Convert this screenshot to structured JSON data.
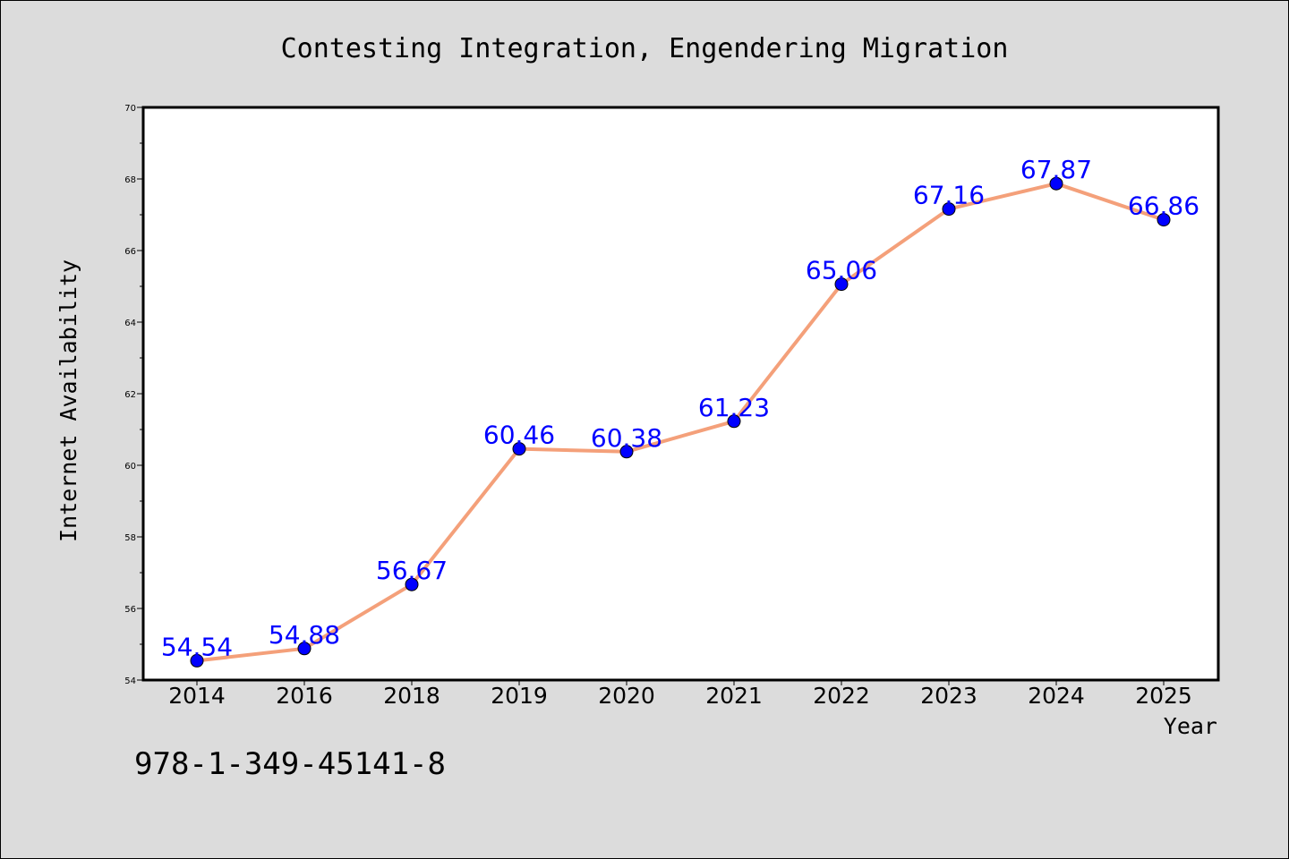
{
  "chart_data": {
    "type": "line",
    "title": "Contesting Integration, Engendering Migration",
    "xlabel": "Year",
    "ylabel": "Internet Availability",
    "categories": [
      "2014",
      "2016",
      "2018",
      "2019",
      "2020",
      "2021",
      "2022",
      "2023",
      "2024",
      "2025"
    ],
    "series": [
      {
        "values": [
          54.54,
          54.88,
          56.67,
          60.46,
          60.38,
          61.23,
          65.06,
          67.16,
          67.87,
          66.86
        ],
        "line_color": "#f4a07a",
        "marker_color": "#0000ff",
        "label_color": "#0000ff"
      }
    ],
    "ylim": [
      54,
      70
    ],
    "yticks": [
      "54",
      "56",
      "58",
      "60",
      "62",
      "64",
      "66",
      "68",
      "70"
    ],
    "grid": false,
    "data_labels": true
  },
  "footnote": "978-1-349-45141-8"
}
